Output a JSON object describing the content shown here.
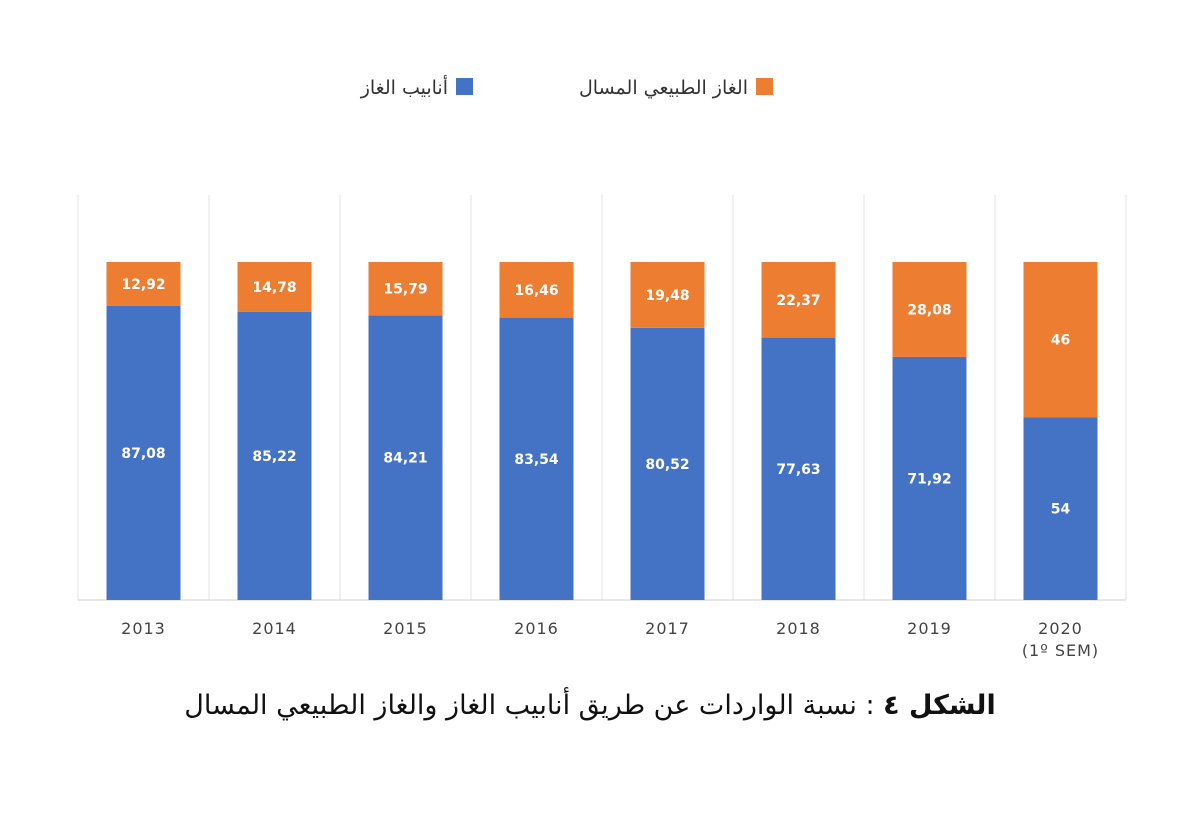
{
  "chart_data": {
    "type": "bar",
    "stacked": true,
    "categories": [
      "2013",
      "2014",
      "2015",
      "2016",
      "2017",
      "2018",
      "2019",
      "2020\n(1º SEM)"
    ],
    "series": [
      {
        "name": "أنابيب الغاز",
        "color": "#4472c4",
        "values": [
          87.08,
          85.22,
          84.21,
          83.54,
          80.52,
          77.63,
          71.92,
          54
        ],
        "labels": [
          "87,08",
          "85,22",
          "84,21",
          "83,54",
          "80,52",
          "77,63",
          "71,92",
          "54"
        ]
      },
      {
        "name": "الغاز الطبيعي المسال",
        "color": "#ed7d31",
        "values": [
          12.92,
          14.78,
          15.79,
          16.46,
          19.48,
          22.37,
          28.08,
          46
        ],
        "labels": [
          "12,92",
          "14,78",
          "15,79",
          "16,46",
          "19,48",
          "22,37",
          "28,08",
          "46"
        ]
      }
    ],
    "ylim": [
      0,
      100
    ],
    "legend_position": "top-right",
    "grid": false,
    "title": "",
    "xlabel": "",
    "ylabel": ""
  },
  "caption": {
    "prefix": "الشكل ٤",
    "text": " : نسبة الواردات عن طريق أنابيب الغاز والغاز الطبيعي المسال"
  }
}
